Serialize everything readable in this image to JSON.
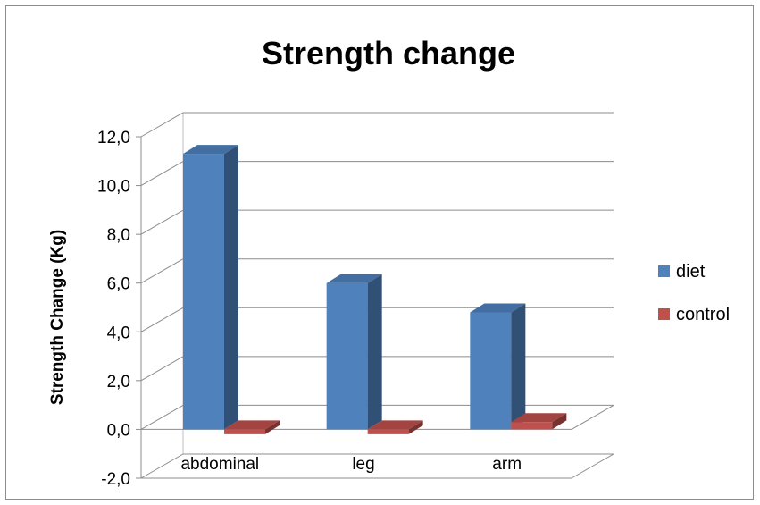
{
  "chart_data": {
    "type": "bar",
    "title": "Strength change",
    "xlabel": "",
    "ylabel": "Strength Change (Kg)",
    "categories": [
      "abdominal",
      "leg",
      "arm"
    ],
    "series": [
      {
        "name": "diet",
        "values": [
          11.3,
          6.0,
          4.8
        ],
        "color": "#4F81BD"
      },
      {
        "name": "control",
        "values": [
          -0.2,
          -0.2,
          0.3
        ],
        "color": "#C0504D"
      }
    ],
    "ylim": [
      -2,
      12
    ],
    "yticks": [
      "-2,0",
      "0,0",
      "2,0",
      "4,0",
      "6,0",
      "8,0",
      "10,0",
      "12,0"
    ],
    "grid": true,
    "style": "3d-clustered-column",
    "legend_position": "right"
  }
}
